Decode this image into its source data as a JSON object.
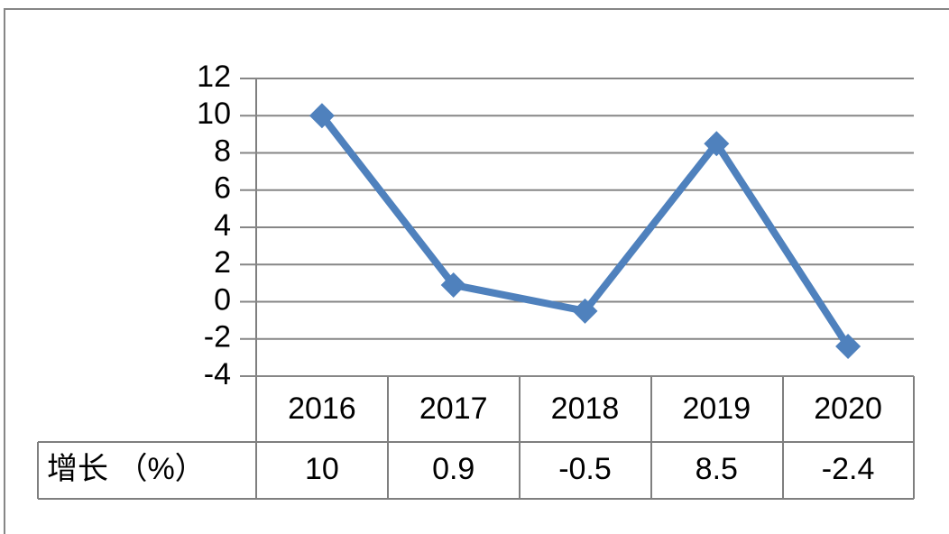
{
  "chart_data": {
    "type": "line",
    "categories": [
      "2016",
      "2017",
      "2018",
      "2019",
      "2020"
    ],
    "series": [
      {
        "name": "增长 （%）",
        "color": "#4f81bd",
        "values": [
          10,
          0.9,
          -0.5,
          8.5,
          -2.4
        ]
      }
    ],
    "ylim": [
      -4,
      12
    ],
    "yticks": [
      -4,
      -2,
      0,
      2,
      4,
      6,
      8,
      10,
      12
    ],
    "grid": true,
    "data_table": true
  }
}
